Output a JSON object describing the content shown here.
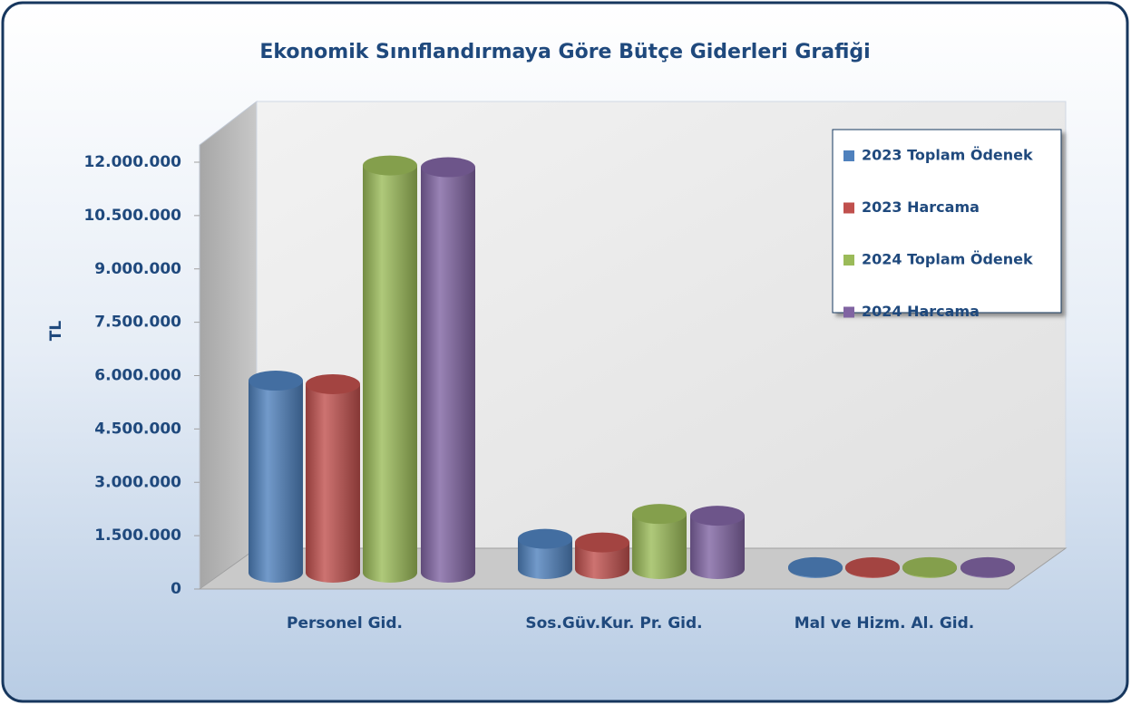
{
  "chart_data": {
    "type": "bar3d",
    "title": "Ekonomik Sınıflandırmaya Göre Bütçe Giderleri Grafiği",
    "y_label": "TL",
    "categories": [
      "Personel Gid.",
      "Sos.Güv.Kur. Pr. Gid.",
      "Mal ve Hizm. Al. Gid."
    ],
    "series": [
      {
        "name": "2023 Toplam Ödenek",
        "color": "#4f81bd",
        "values": [
          5400000,
          850000,
          30000
        ]
      },
      {
        "name": "2023 Harcama",
        "color": "#c0504d",
        "values": [
          5300000,
          750000,
          25000
        ]
      },
      {
        "name": "2024 Toplam Ödenek",
        "color": "#9bbb59",
        "values": [
          11450000,
          1550000,
          30000
        ]
      },
      {
        "name": "2024 Harcama",
        "color": "#8064a2",
        "values": [
          11400000,
          1500000,
          28000
        ]
      }
    ],
    "ylim": [
      0,
      12000000
    ],
    "yticks": [
      0,
      {
        "value": 1500000,
        "label": "1.500.000"
      },
      {
        "value": 3000000,
        "label": "3.000.000"
      },
      {
        "value": 4500000,
        "label": "4.500.000"
      },
      {
        "value": 6000000,
        "label": "6.000.000"
      },
      {
        "value": 7500000,
        "label": "7.500.000"
      },
      {
        "value": 9000000,
        "label": "9.000.000"
      },
      {
        "value": 10500000,
        "label": "10.500.000"
      },
      {
        "value": 12000000,
        "label": "12.000.000"
      }
    ],
    "legend": "top-right"
  }
}
